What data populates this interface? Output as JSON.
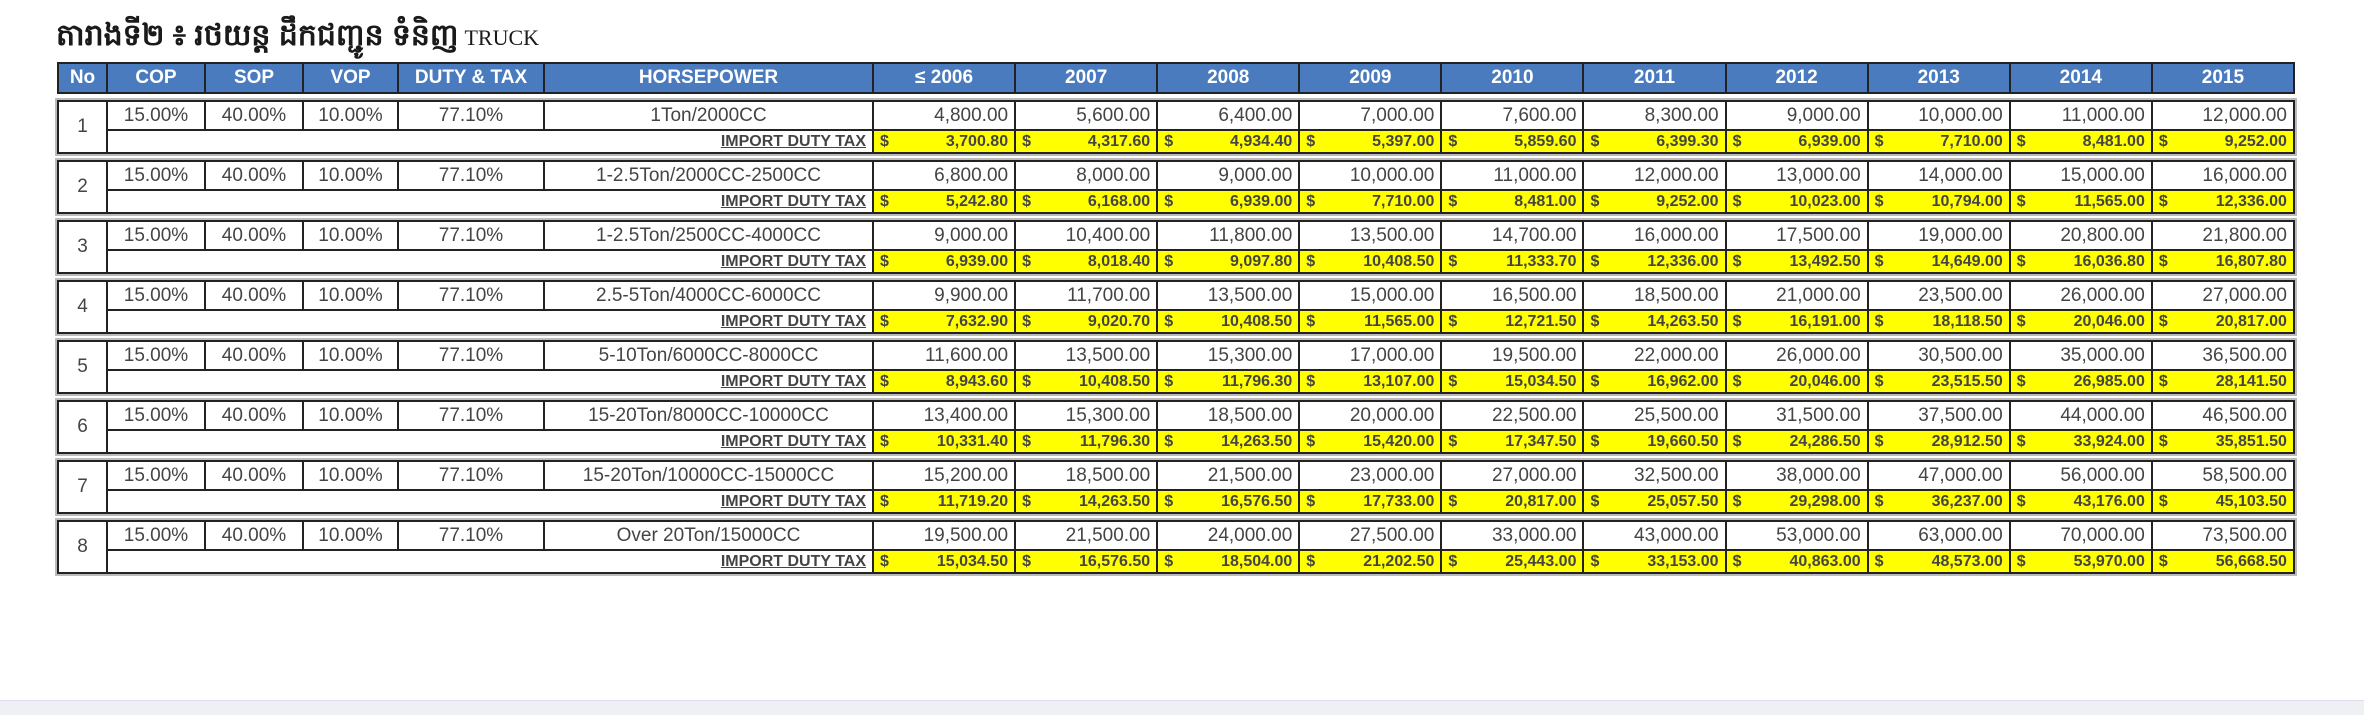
{
  "title": {
    "khmer": "តារាងទី២ ៖ រថយន្ត ដឹកជញ្ជូន ទំនិញ",
    "english": "TRUCK"
  },
  "headers": [
    "No",
    "COP",
    "SOP",
    "VOP",
    "DUTY & TAX",
    "HORSEPOWER",
    "≤ 2006",
    "2007",
    "2008",
    "2009",
    "2010",
    "2011",
    "2012",
    "2013",
    "2014",
    "2015"
  ],
  "tax_label": "IMPORT DUTY TAX",
  "currency": "$",
  "colors": {
    "header": "#4a7bbf",
    "tax_highlight": "#ffff00",
    "tax_label": "#e01b1b"
  },
  "rows": [
    {
      "no": "1",
      "cop": "15.00%",
      "sop": "40.00%",
      "vop": "10.00%",
      "duty": "77.10%",
      "hp": "1Ton/2000CC",
      "values": [
        "4,800.00",
        "5,600.00",
        "6,400.00",
        "7,000.00",
        "7,600.00",
        "8,300.00",
        "9,000.00",
        "10,000.00",
        "11,000.00",
        "12,000.00"
      ],
      "tax": [
        "3,700.80",
        "4,317.60",
        "4,934.40",
        "5,397.00",
        "5,859.60",
        "6,399.30",
        "6,939.00",
        "7,710.00",
        "8,481.00",
        "9,252.00"
      ]
    },
    {
      "no": "2",
      "cop": "15.00%",
      "sop": "40.00%",
      "vop": "10.00%",
      "duty": "77.10%",
      "hp": "1-2.5Ton/2000CC-2500CC",
      "values": [
        "6,800.00",
        "8,000.00",
        "9,000.00",
        "10,000.00",
        "11,000.00",
        "12,000.00",
        "13,000.00",
        "14,000.00",
        "15,000.00",
        "16,000.00"
      ],
      "tax": [
        "5,242.80",
        "6,168.00",
        "6,939.00",
        "7,710.00",
        "8,481.00",
        "9,252.00",
        "10,023.00",
        "10,794.00",
        "11,565.00",
        "12,336.00"
      ]
    },
    {
      "no": "3",
      "cop": "15.00%",
      "sop": "40.00%",
      "vop": "10.00%",
      "duty": "77.10%",
      "hp": "1-2.5Ton/2500CC-4000CC",
      "values": [
        "9,000.00",
        "10,400.00",
        "11,800.00",
        "13,500.00",
        "14,700.00",
        "16,000.00",
        "17,500.00",
        "19,000.00",
        "20,800.00",
        "21,800.00"
      ],
      "tax": [
        "6,939.00",
        "8,018.40",
        "9,097.80",
        "10,408.50",
        "11,333.70",
        "12,336.00",
        "13,492.50",
        "14,649.00",
        "16,036.80",
        "16,807.80"
      ]
    },
    {
      "no": "4",
      "cop": "15.00%",
      "sop": "40.00%",
      "vop": "10.00%",
      "duty": "77.10%",
      "hp": "2.5-5Ton/4000CC-6000CC",
      "values": [
        "9,900.00",
        "11,700.00",
        "13,500.00",
        "15,000.00",
        "16,500.00",
        "18,500.00",
        "21,000.00",
        "23,500.00",
        "26,000.00",
        "27,000.00"
      ],
      "tax": [
        "7,632.90",
        "9,020.70",
        "10,408.50",
        "11,565.00",
        "12,721.50",
        "14,263.50",
        "16,191.00",
        "18,118.50",
        "20,046.00",
        "20,817.00"
      ]
    },
    {
      "no": "5",
      "cop": "15.00%",
      "sop": "40.00%",
      "vop": "10.00%",
      "duty": "77.10%",
      "hp": "5-10Ton/6000CC-8000CC",
      "values": [
        "11,600.00",
        "13,500.00",
        "15,300.00",
        "17,000.00",
        "19,500.00",
        "22,000.00",
        "26,000.00",
        "30,500.00",
        "35,000.00",
        "36,500.00"
      ],
      "tax": [
        "8,943.60",
        "10,408.50",
        "11,796.30",
        "13,107.00",
        "15,034.50",
        "16,962.00",
        "20,046.00",
        "23,515.50",
        "26,985.00",
        "28,141.50"
      ]
    },
    {
      "no": "6",
      "cop": "15.00%",
      "sop": "40.00%",
      "vop": "10.00%",
      "duty": "77.10%",
      "hp": "15-20Ton/8000CC-10000CC",
      "values": [
        "13,400.00",
        "15,300.00",
        "18,500.00",
        "20,000.00",
        "22,500.00",
        "25,500.00",
        "31,500.00",
        "37,500.00",
        "44,000.00",
        "46,500.00"
      ],
      "tax": [
        "10,331.40",
        "11,796.30",
        "14,263.50",
        "15,420.00",
        "17,347.50",
        "19,660.50",
        "24,286.50",
        "28,912.50",
        "33,924.00",
        "35,851.50"
      ]
    },
    {
      "no": "7",
      "cop": "15.00%",
      "sop": "40.00%",
      "vop": "10.00%",
      "duty": "77.10%",
      "hp": "15-20Ton/10000CC-15000CC",
      "values": [
        "15,200.00",
        "18,500.00",
        "21,500.00",
        "23,000.00",
        "27,000.00",
        "32,500.00",
        "38,000.00",
        "47,000.00",
        "56,000.00",
        "58,500.00"
      ],
      "tax": [
        "11,719.20",
        "14,263.50",
        "16,576.50",
        "17,733.00",
        "20,817.00",
        "25,057.50",
        "29,298.00",
        "36,237.00",
        "43,176.00",
        "45,103.50"
      ]
    },
    {
      "no": "8",
      "cop": "15.00%",
      "sop": "40.00%",
      "vop": "10.00%",
      "duty": "77.10%",
      "hp": "Over  20Ton/15000CC",
      "values": [
        "19,500.00",
        "21,500.00",
        "24,000.00",
        "27,500.00",
        "33,000.00",
        "43,000.00",
        "53,000.00",
        "63,000.00",
        "70,000.00",
        "73,500.00"
      ],
      "tax": [
        "15,034.50",
        "16,576.50",
        "18,504.00",
        "21,202.50",
        "25,443.00",
        "33,153.00",
        "40,863.00",
        "48,573.00",
        "53,970.00",
        "56,668.50"
      ]
    }
  ]
}
